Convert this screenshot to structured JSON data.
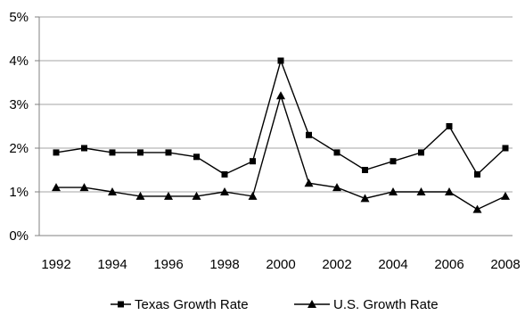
{
  "chart_data": {
    "type": "line",
    "x": [
      1992,
      1993,
      1994,
      1995,
      1996,
      1997,
      1998,
      1999,
      2000,
      2001,
      2002,
      2003,
      2004,
      2005,
      2006,
      2007,
      2008
    ],
    "series": [
      {
        "name": "Texas Growth Rate",
        "marker": "square",
        "values": [
          1.9,
          2.0,
          1.9,
          1.9,
          1.9,
          1.8,
          1.4,
          1.7,
          4.0,
          2.3,
          1.9,
          1.5,
          1.7,
          1.9,
          2.5,
          1.4,
          2.0
        ]
      },
      {
        "name": "U.S. Growth Rate",
        "marker": "triangle",
        "values": [
          1.1,
          1.1,
          1.0,
          0.9,
          0.9,
          0.9,
          1.0,
          0.9,
          3.2,
          1.2,
          1.1,
          0.85,
          1.0,
          1.0,
          1.0,
          0.6,
          0.9
        ]
      }
    ],
    "x_tick_labels": [
      "1992",
      "1994",
      "1996",
      "1998",
      "2000",
      "2002",
      "2004",
      "2006",
      "2008"
    ],
    "y_tick_labels": [
      "0%",
      "1%",
      "2%",
      "3%",
      "4%",
      "5%"
    ],
    "ylim": [
      0,
      5
    ],
    "grid": "horizontal",
    "legend": "bottom",
    "colors": {
      "line": "#000000",
      "grid": "#a6a6a6",
      "axis": "#808080"
    }
  }
}
